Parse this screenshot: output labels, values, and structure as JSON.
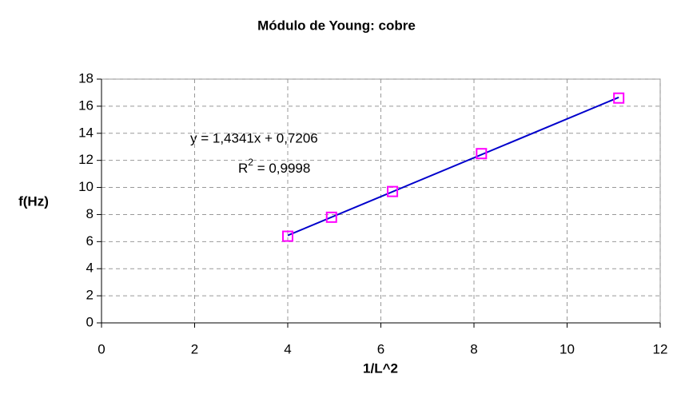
{
  "chart_data": {
    "type": "scatter",
    "title": "Módulo de Young: cobre",
    "xlabel": "1/L^2",
    "ylabel": "f(Hz)",
    "x": [
      4,
      4.94,
      6.25,
      8.16,
      11.11
    ],
    "series": [
      {
        "color": "#ff00ff",
        "values": [
          6.4,
          7.8,
          9.7,
          12.5,
          16.6
        ]
      }
    ],
    "trendline": {
      "slope": 1.4341,
      "intercept": 0.7206,
      "color": "#0000cc"
    },
    "equation_label": "y = 1,4341x + 0,7206",
    "r2_label": [
      "R",
      "2",
      " = 0,9998"
    ],
    "xlim": [
      0,
      12
    ],
    "xticks": [
      0,
      2,
      4,
      6,
      8,
      10,
      12
    ],
    "ylim": [
      0,
      18
    ],
    "yticks": [
      0,
      2,
      4,
      6,
      8,
      10,
      12,
      14,
      16,
      18
    ],
    "grid": true
  }
}
